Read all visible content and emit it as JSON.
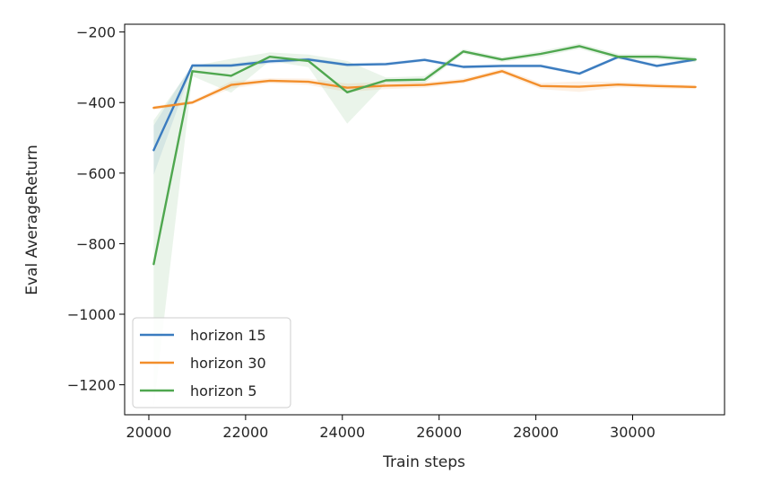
{
  "chart_data": {
    "type": "line",
    "title": "",
    "xlabel": "Train steps",
    "ylabel": "Eval AverageReturn",
    "xlim": [
      19500,
      31900
    ],
    "ylim": [
      -1285,
      -178
    ],
    "xticks": [
      20000,
      22000,
      24000,
      26000,
      28000,
      30000
    ],
    "xtick_labels": [
      "20000",
      "22000",
      "24000",
      "26000",
      "28000",
      "30000"
    ],
    "yticks": [
      -200,
      -400,
      -600,
      -800,
      -1000,
      -1200
    ],
    "ytick_labels": [
      "−200",
      "−400",
      "−600",
      "−800",
      "−1000",
      "−1200"
    ],
    "grid": false,
    "legend_position": "lower-left",
    "x": [
      20100,
      20900,
      21700,
      22500,
      23300,
      24100,
      24900,
      25700,
      26500,
      27300,
      28100,
      28900,
      29700,
      30500,
      31300
    ],
    "series": [
      {
        "name": "horizon 15",
        "color": "#3a7bbf",
        "values": [
          -535,
          -295,
          -295,
          -283,
          -278,
          -293,
          -291,
          -279,
          -299,
          -296,
          -296,
          -318,
          -271,
          -296,
          -278
        ],
        "band_lower": [
          -605,
          -300,
          -300,
          -290,
          -283,
          -298,
          -296,
          -284,
          -304,
          -301,
          -301,
          -323,
          -276,
          -301,
          -283
        ],
        "band_upper": [
          -465,
          -290,
          -290,
          -276,
          -273,
          -288,
          -286,
          -274,
          -294,
          -291,
          -291,
          -313,
          -266,
          -291,
          -273
        ]
      },
      {
        "name": "horizon 30",
        "color": "#f28e2b",
        "values": [
          -415,
          -400,
          -350,
          -338,
          -341,
          -358,
          -352,
          -350,
          -339,
          -311,
          -353,
          -355,
          -349,
          -353,
          -356
        ],
        "band_lower": [
          -420,
          -405,
          -360,
          -345,
          -350,
          -370,
          -362,
          -358,
          -346,
          -318,
          -362,
          -370,
          -357,
          -360,
          -362
        ],
        "band_upper": [
          -410,
          -395,
          -340,
          -331,
          -332,
          -346,
          -342,
          -342,
          -332,
          -304,
          -344,
          -340,
          -341,
          -346,
          -350
        ]
      },
      {
        "name": "horizon 5",
        "color": "#4fa74f",
        "values": [
          -858,
          -311,
          -324,
          -270,
          -282,
          -371,
          -337,
          -335,
          -255,
          -278,
          -262,
          -240,
          -270,
          -270,
          -278
        ],
        "band_lower": [
          -1265,
          -325,
          -372,
          -282,
          -300,
          -460,
          -345,
          -345,
          -262,
          -285,
          -270,
          -248,
          -278,
          -278,
          -286
        ],
        "band_upper": [
          -450,
          -297,
          -276,
          -258,
          -264,
          -282,
          -329,
          -325,
          -248,
          -271,
          -254,
          -232,
          -262,
          -262,
          -270
        ]
      }
    ]
  }
}
